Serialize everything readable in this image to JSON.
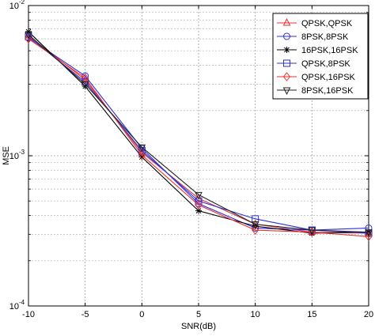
{
  "chart_data": {
    "type": "line",
    "xlabel": "SNR(dB)",
    "ylabel": "MSE",
    "y_scale": "log",
    "xlim": [
      -10,
      20
    ],
    "ylim": [
      0.0001,
      0.01
    ],
    "x_ticks": [
      "-10",
      "-5",
      "0",
      "5",
      "10",
      "15",
      "20"
    ],
    "y_ticks": [
      {
        "base": "10",
        "exp": "-2",
        "value": 0.01
      },
      {
        "base": "10",
        "exp": "-3",
        "value": 0.001
      },
      {
        "base": "10",
        "exp": "-4",
        "value": 0.0001
      }
    ],
    "grid": true,
    "legend_position": "top-right",
    "x": [
      -10,
      -5,
      0,
      5,
      10,
      15,
      20
    ],
    "series": [
      {
        "name": "QPSK,QPSK",
        "color": "#e8312f",
        "marker": "triangle-up",
        "values": [
          0.0063,
          0.0032,
          0.00105,
          0.00052,
          0.00035,
          0.00031,
          0.000305
        ]
      },
      {
        "name": "8PSK,8PSK",
        "color": "#2b2fd6",
        "marker": "circle",
        "values": [
          0.0061,
          0.0034,
          0.00112,
          0.00048,
          0.00033,
          0.00032,
          0.00033
        ]
      },
      {
        "name": "16PSK,16PSK",
        "color": "#000000",
        "marker": "star",
        "values": [
          0.0067,
          0.0029,
          0.00098,
          0.00043,
          0.00034,
          0.000305,
          0.00031
        ]
      },
      {
        "name": "QPSK,8PSK",
        "color": "#2b2fd6",
        "marker": "square",
        "values": [
          0.0062,
          0.0031,
          0.00108,
          0.0005,
          0.00038,
          0.00032,
          0.000305
        ]
      },
      {
        "name": "QPSK,16PSK",
        "color": "#e8312f",
        "marker": "diamond",
        "values": [
          0.006,
          0.0033,
          0.00101,
          0.00047,
          0.00032,
          0.00031,
          0.00029
        ]
      },
      {
        "name": "8PSK,16PSK",
        "color": "#222222",
        "marker": "triangle-down",
        "values": [
          0.0064,
          0.003,
          0.00114,
          0.00055,
          0.00035,
          0.00032,
          0.00031
        ]
      }
    ]
  }
}
